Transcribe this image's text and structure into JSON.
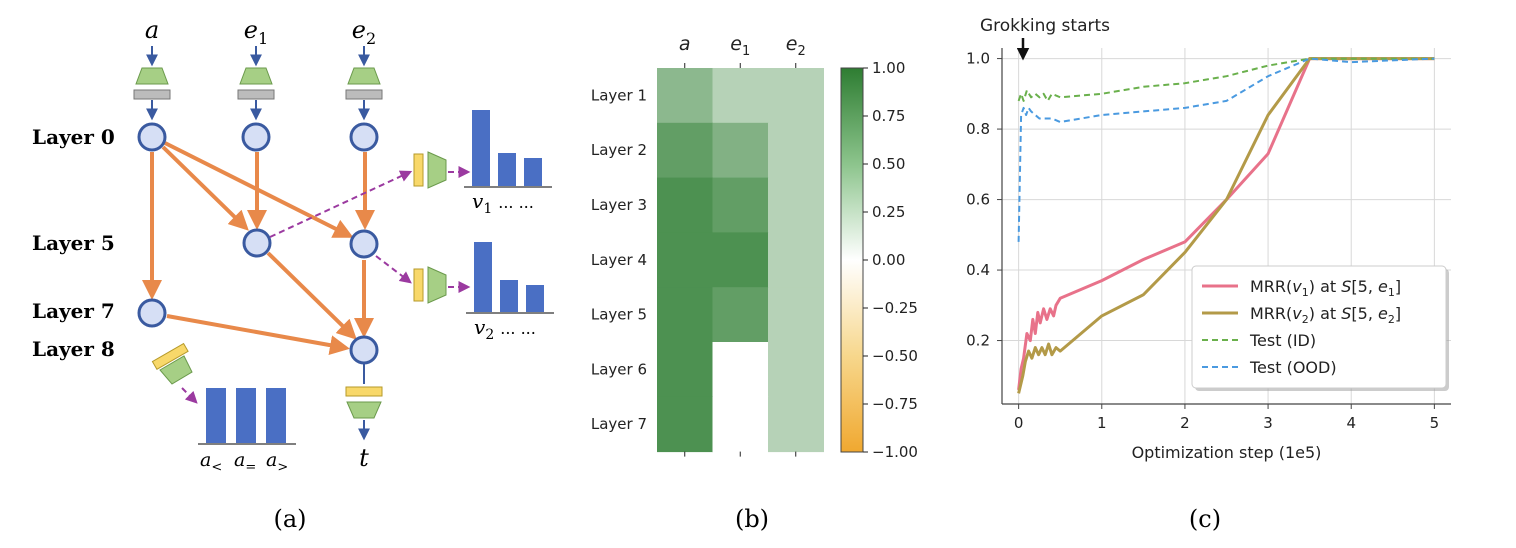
{
  "panel_a": {
    "caption": "(a)",
    "inputs": [
      "a",
      "e",
      "e"
    ],
    "input_subs": [
      "",
      "1",
      "2"
    ],
    "layers": [
      "Layer 0",
      "Layer 5",
      "Layer 7",
      "Layer 8"
    ],
    "output": "t",
    "probe_v1": {
      "label": "v",
      "sub": "1",
      "dots": "...   ..."
    },
    "probe_v2": {
      "label": "v",
      "sub": "2",
      "dots": "...   ..."
    },
    "probe_cmp": {
      "labels": [
        "a",
        "a",
        "a"
      ],
      "subs": [
        "<",
        "=",
        ">"
      ]
    },
    "colors": {
      "node_fill": "#d6dff5",
      "node_stroke": "#3a5aa0",
      "edge": "#e8894a",
      "probe_arrow": "#9b3aa0",
      "bar": "#4a6fc4",
      "encoder": "#a6cf85",
      "probe_box": "#f8d86a"
    }
  },
  "panel_b": {
    "caption": "(b)",
    "chart_data": {
      "type": "heatmap",
      "columns": [
        "a",
        "e",
        "e"
      ],
      "column_subs": [
        "",
        "1",
        "2"
      ],
      "rows": [
        "Layer 1",
        "Layer 2",
        "Layer 3",
        "Layer 4",
        "Layer 5",
        "Layer 6",
        "Layer 7"
      ],
      "values": [
        [
          0.55,
          0.35,
          0.35
        ],
        [
          0.75,
          0.6,
          0.35
        ],
        [
          0.85,
          0.75,
          0.35
        ],
        [
          0.85,
          0.85,
          0.35
        ],
        [
          0.85,
          0.75,
          0.35
        ],
        [
          0.85,
          0.0,
          0.35
        ],
        [
          0.85,
          0.0,
          0.35
        ]
      ],
      "colorbar_ticks": [
        "1.00",
        "0.75",
        "0.50",
        "0.25",
        "0.00",
        "−0.25",
        "−0.50",
        "−0.75",
        "−1.00"
      ],
      "vmin": -1.0,
      "vmax": 1.0,
      "colors": {
        "positive": "#2e7d32",
        "zero": "#ffffff",
        "negative": "#f0a830"
      }
    }
  },
  "panel_c": {
    "caption": "(c)",
    "annotation": "Grokking starts",
    "chart_data": {
      "type": "line",
      "xlabel": "Optimization step (1e5)",
      "ylabel": "",
      "xlim": [
        -0.2,
        5.2
      ],
      "ylim": [
        0.02,
        1.03
      ],
      "xticks": [
        0,
        1,
        2,
        3,
        4,
        5
      ],
      "yticks": [
        0.2,
        0.4,
        0.6,
        0.8,
        1.0
      ],
      "ytick_labels": [
        "0.2",
        "0.4",
        "0.6",
        "0.8",
        "1.0"
      ],
      "grid": true,
      "legend_position": "lower-right",
      "annotation_x": 0.03,
      "series": [
        {
          "name": "MRR(v₁) at S[5, e₁]",
          "legend_main": "MRR(",
          "legend_var": "v",
          "legend_sub": "1",
          "legend_mid": ") at ",
          "legend_s": "S",
          "legend_bracket": "[5, ",
          "legend_e": "e",
          "legend_esub": "1",
          "legend_end": "]",
          "color": "#e8728a",
          "style": "solid",
          "points": [
            [
              0.0,
              0.06
            ],
            [
              0.03,
              0.12
            ],
            [
              0.06,
              0.15
            ],
            [
              0.1,
              0.22
            ],
            [
              0.14,
              0.2
            ],
            [
              0.17,
              0.26
            ],
            [
              0.2,
              0.22
            ],
            [
              0.23,
              0.28
            ],
            [
              0.26,
              0.25
            ],
            [
              0.3,
              0.29
            ],
            [
              0.34,
              0.26
            ],
            [
              0.38,
              0.29
            ],
            [
              0.42,
              0.27
            ],
            [
              0.45,
              0.3
            ],
            [
              0.5,
              0.32
            ],
            [
              1.0,
              0.37
            ],
            [
              1.5,
              0.43
            ],
            [
              2.0,
              0.48
            ],
            [
              2.5,
              0.6
            ],
            [
              3.0,
              0.73
            ],
            [
              3.5,
              1.0
            ],
            [
              5.0,
              1.0
            ]
          ]
        },
        {
          "name": "MRR(v₂) at S[5, e₂]",
          "legend_main": "MRR(",
          "legend_var": "v",
          "legend_sub": "2",
          "legend_mid": ") at ",
          "legend_s": "S",
          "legend_bracket": "[5, ",
          "legend_e": "e",
          "legend_esub": "2",
          "legend_end": "]",
          "color": "#b39a48",
          "style": "solid",
          "points": [
            [
              0.0,
              0.05
            ],
            [
              0.05,
              0.1
            ],
            [
              0.08,
              0.14
            ],
            [
              0.12,
              0.17
            ],
            [
              0.16,
              0.15
            ],
            [
              0.2,
              0.18
            ],
            [
              0.24,
              0.16
            ],
            [
              0.28,
              0.18
            ],
            [
              0.32,
              0.16
            ],
            [
              0.36,
              0.19
            ],
            [
              0.4,
              0.16
            ],
            [
              0.45,
              0.18
            ],
            [
              0.5,
              0.17
            ],
            [
              1.0,
              0.27
            ],
            [
              1.5,
              0.33
            ],
            [
              2.0,
              0.45
            ],
            [
              2.5,
              0.6
            ],
            [
              3.0,
              0.84
            ],
            [
              3.5,
              1.0
            ],
            [
              5.0,
              1.0
            ]
          ]
        },
        {
          "name": "Test (ID)",
          "legend_main": "Test (ID)",
          "color": "#6ab04c",
          "style": "dashed",
          "points": [
            [
              0.0,
              0.88
            ],
            [
              0.03,
              0.9
            ],
            [
              0.06,
              0.88
            ],
            [
              0.1,
              0.91
            ],
            [
              0.15,
              0.89
            ],
            [
              0.2,
              0.9
            ],
            [
              0.25,
              0.89
            ],
            [
              0.3,
              0.9
            ],
            [
              0.35,
              0.88
            ],
            [
              0.4,
              0.9
            ],
            [
              0.5,
              0.89
            ],
            [
              1.0,
              0.9
            ],
            [
              1.5,
              0.92
            ],
            [
              2.0,
              0.93
            ],
            [
              2.5,
              0.95
            ],
            [
              3.0,
              0.98
            ],
            [
              3.5,
              1.0
            ],
            [
              5.0,
              1.0
            ]
          ]
        },
        {
          "name": "Test (OOD)",
          "legend_main": "Test (OOD)",
          "color": "#4a9ae0",
          "style": "dashed",
          "points": [
            [
              0.0,
              0.48
            ],
            [
              0.03,
              0.84
            ],
            [
              0.06,
              0.86
            ],
            [
              0.09,
              0.84
            ],
            [
              0.12,
              0.86
            ],
            [
              0.15,
              0.85
            ],
            [
              0.2,
              0.84
            ],
            [
              0.25,
              0.83
            ],
            [
              0.3,
              0.83
            ],
            [
              0.4,
              0.83
            ],
            [
              0.5,
              0.82
            ],
            [
              1.0,
              0.84
            ],
            [
              1.5,
              0.85
            ],
            [
              2.0,
              0.86
            ],
            [
              2.5,
              0.88
            ],
            [
              3.0,
              0.95
            ],
            [
              3.5,
              1.0
            ],
            [
              4.0,
              0.99
            ],
            [
              5.0,
              1.0
            ]
          ]
        }
      ]
    }
  }
}
